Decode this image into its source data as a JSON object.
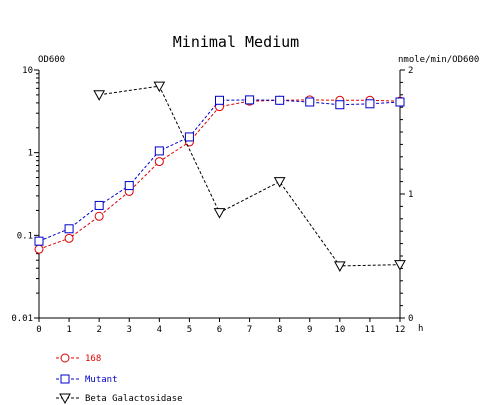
{
  "chart_data": {
    "type": "line",
    "title": "Minimal Medium",
    "y_left_label": "OD600",
    "y_right_label": "nmole/min/OD600",
    "x_label": "h",
    "x_ticks": [
      "0",
      "1",
      "2",
      "3",
      "4",
      "5",
      "6",
      "7",
      "8",
      "9",
      "10",
      "11",
      "12"
    ],
    "y_left_ticks": [
      "10",
      "1",
      "0.1",
      "0.01"
    ],
    "y_right_ticks": [
      "2",
      "1",
      "0"
    ],
    "xlim": [
      0,
      12
    ],
    "ylim_left": [
      0.01,
      10
    ],
    "y_left_scale": "log",
    "ylim_right": [
      0,
      2
    ],
    "grid": false,
    "legend_position": "bottom-left",
    "series": [
      {
        "name": "168",
        "axis": "left",
        "marker": "circle",
        "color": "#dd0000",
        "x": [
          0,
          1,
          2,
          3,
          4,
          5,
          6,
          7,
          8,
          9,
          10,
          11,
          12
        ],
        "y": [
          0.068,
          0.092,
          0.17,
          0.34,
          0.78,
          1.35,
          3.6,
          4.2,
          4.3,
          4.35,
          4.3,
          4.3,
          4.2
        ]
      },
      {
        "name": "Mutant",
        "axis": "left",
        "marker": "square",
        "color": "#0000cc",
        "x": [
          0,
          1,
          2,
          3,
          4,
          5,
          6,
          7,
          8,
          9,
          10,
          11,
          12
        ],
        "y": [
          0.085,
          0.12,
          0.23,
          0.4,
          1.05,
          1.55,
          4.3,
          4.35,
          4.3,
          4.1,
          3.8,
          3.9,
          4.1
        ]
      },
      {
        "name": "Beta Galactosidase",
        "axis": "right",
        "marker": "triangle-down",
        "color": "#000000",
        "x": [
          2,
          4,
          6,
          8,
          10,
          12
        ],
        "y": [
          1.8,
          1.87,
          0.85,
          1.1,
          0.42,
          0.43
        ]
      }
    ]
  }
}
